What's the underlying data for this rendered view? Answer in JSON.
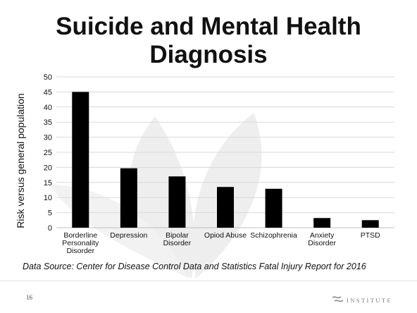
{
  "slide": {
    "title": "Suicide and Mental Health Diagnosis",
    "source": "Data Source: Center for Disease Control Data and Statistics Fatal Injury Report for 2016",
    "page_number": "16",
    "logo_text": "INSTITUTE",
    "logo_icon": "wave-logo-icon"
  },
  "chart_data": {
    "type": "bar",
    "title": "Suicide and Mental Health Diagnosis",
    "ylabel": "Risk versus general population",
    "xlabel": "",
    "categories": [
      [
        "Borderline",
        "Personality",
        "Disorder"
      ],
      [
        "Depression"
      ],
      [
        "Bipolar",
        "Disorder"
      ],
      [
        "Opiod Abuse"
      ],
      [
        "Schizophrenia"
      ],
      [
        "Anxiety",
        "Disorder"
      ],
      [
        "PTSD"
      ]
    ],
    "values": [
      45,
      19.7,
      17,
      13.5,
      12.9,
      3.2,
      2.5
    ],
    "ylim": [
      0,
      50
    ],
    "yticks": [
      0,
      5,
      10,
      15,
      20,
      25,
      30,
      35,
      40,
      45,
      50
    ],
    "grid": true,
    "legend": "none",
    "colors": {
      "bar": "#000000",
      "grid": "#d9d9d9",
      "text": "#111111"
    }
  }
}
